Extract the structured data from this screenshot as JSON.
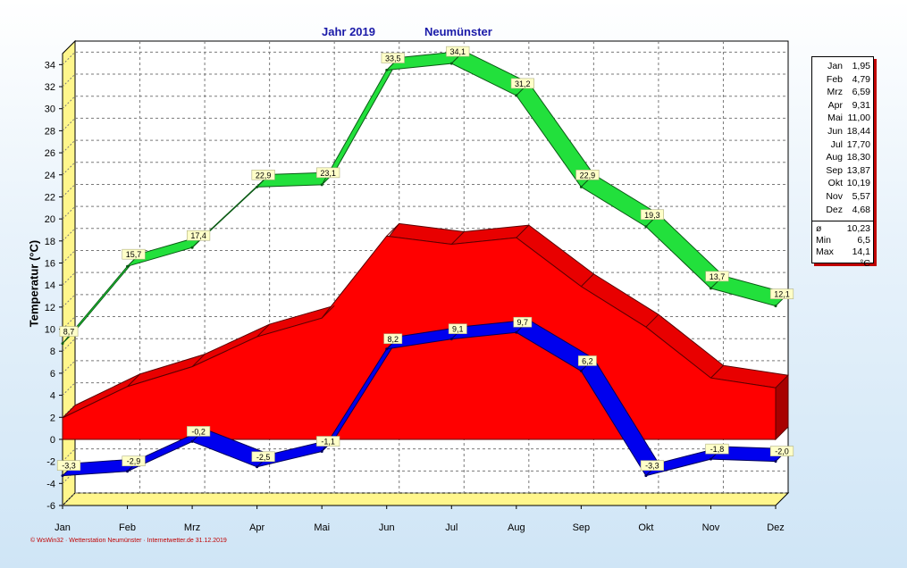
{
  "header": {
    "year": "Jahr  2019",
    "station": "Neumünster"
  },
  "footer": "© WsWin32 · Wetterstation Neumünster · Internetwetter.de  31.12.2019",
  "chart_data": {
    "type": "area",
    "ylabel": "Temperatur  (°C)",
    "ylim": [
      -6,
      35
    ],
    "yticks": [
      -6,
      -4,
      -2,
      0,
      2,
      4,
      6,
      8,
      10,
      12,
      14,
      16,
      18,
      20,
      22,
      24,
      26,
      28,
      30,
      32,
      34
    ],
    "ytick_labels": [
      "-6",
      "-4",
      "-2",
      "0",
      "2",
      "4",
      "6",
      "8",
      "10",
      "12",
      "14",
      "16",
      "18",
      "20",
      "22",
      "24",
      "26",
      "28",
      "30",
      "32",
      "34"
    ],
    "categories": [
      "Jan",
      "Feb",
      "Mrz",
      "Apr",
      "Mai",
      "Jun",
      "Jul",
      "Aug",
      "Sep",
      "Okt",
      "Nov",
      "Dez"
    ],
    "grid": true,
    "series": [
      {
        "kind": "max",
        "color": "#22e03c",
        "values": [
          8.7,
          15.7,
          17.4,
          22.9,
          23.1,
          33.5,
          34.1,
          31.2,
          22.9,
          19.3,
          13.7,
          12.1
        ],
        "labels": [
          "8,7",
          "15,7",
          "17,4",
          "22,9",
          "23,1",
          "33,5",
          "34,1",
          "31,2",
          "22,9",
          "19,3",
          "13,7",
          "12,1"
        ]
      },
      {
        "kind": "mean",
        "color": "#ff0000",
        "values": [
          1.95,
          4.79,
          6.59,
          9.31,
          11.0,
          18.44,
          17.7,
          18.3,
          13.87,
          10.19,
          5.57,
          4.68
        ]
      },
      {
        "kind": "min",
        "color": "#0000ee",
        "values": [
          -3.3,
          -2.9,
          -0.2,
          -2.5,
          -1.1,
          8.2,
          9.1,
          9.7,
          6.2,
          -3.3,
          -1.8,
          -2.0
        ],
        "labels": [
          "-3,3",
          "-2,9",
          "-0,2",
          "-2,5",
          "-1,1",
          "8,2",
          "9,1",
          "9,7",
          "6,2",
          "-3,3",
          "-1,8",
          "-2,0"
        ]
      }
    ]
  },
  "legend": {
    "months": [
      {
        "month": "Jan",
        "value": "1,95"
      },
      {
        "month": "Feb",
        "value": "4,79"
      },
      {
        "month": "Mrz",
        "value": "6,59"
      },
      {
        "month": "Apr",
        "value": "9,31"
      },
      {
        "month": "Mai",
        "value": "11,00"
      },
      {
        "month": "Jun",
        "value": "18,44"
      },
      {
        "month": "Jul",
        "value": "17,70"
      },
      {
        "month": "Aug",
        "value": "18,30"
      },
      {
        "month": "Sep",
        "value": "13,87"
      },
      {
        "month": "Okt",
        "value": "10,19"
      },
      {
        "month": "Nov",
        "value": "5,57"
      },
      {
        "month": "Dez",
        "value": "4,68"
      }
    ],
    "stats": [
      {
        "label": "ø",
        "value": "10,23"
      },
      {
        "label": "Min",
        "value": "6,5"
      },
      {
        "label": "Max",
        "value": "14,1"
      }
    ],
    "unit": "°C"
  }
}
